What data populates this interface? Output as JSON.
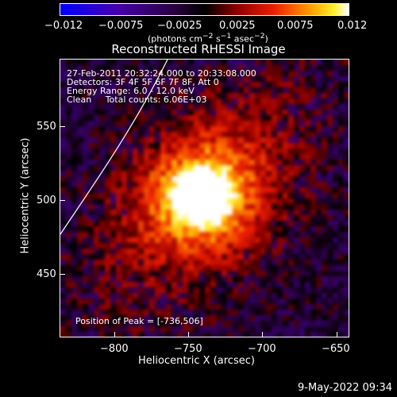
{
  "colorbar": {
    "tick_labels": [
      "−0.012",
      "−0.0075",
      "−0.0025",
      "0.0025",
      "0.0075",
      "0.012"
    ],
    "unit_label_html": "(photons cm<sup>−2</sup> s<sup>−1</sup> asec<sup>−2</sup>)",
    "range": [
      -0.012,
      0.012
    ]
  },
  "plot": {
    "title": "Reconstructed RHESSI Image",
    "xlabel": "Heliocentric X (arcsec)",
    "ylabel": "Heliocentric Y (arcsec)",
    "x_ticks": [
      "−800",
      "−750",
      "−700",
      "−650"
    ],
    "y_ticks": [
      "550",
      "500",
      "450"
    ],
    "xlim": [
      -835,
      -640
    ],
    "ylim": [
      400,
      590
    ]
  },
  "info": {
    "line1": "27-Feb-2011 20:32:24.000 to 20:33:08.000",
    "line2": "Detectors: 3F 4F 5F 6F 7F 8F, Att 0",
    "line3": "Energy Range: 6.0 - 12.0 keV",
    "line4": "Clean     Total counts: 6.06E+03",
    "peak": "Position of Peak = [-736,506]"
  },
  "footer": {
    "date": "9-May-2022 09:34"
  }
}
